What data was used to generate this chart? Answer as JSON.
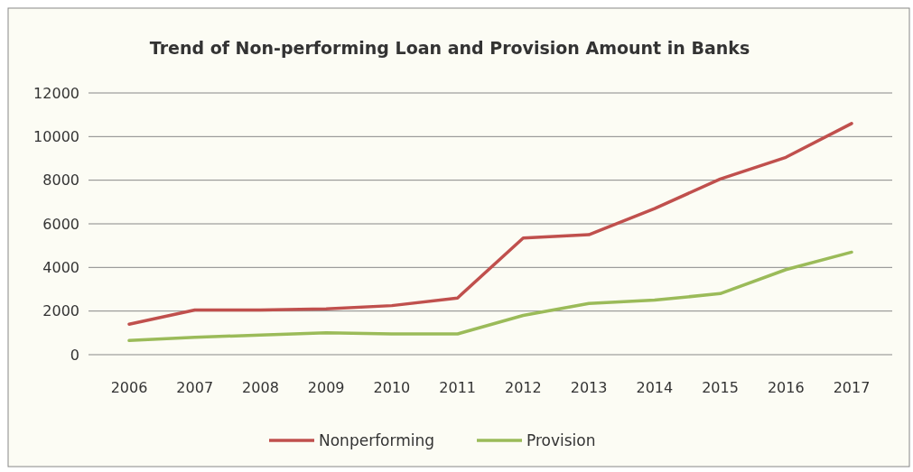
{
  "chart_data": {
    "type": "line",
    "title": "Trend of Non-performing Loan and Provision Amount in Banks",
    "categories": [
      "2006",
      "2007",
      "2008",
      "2009",
      "2010",
      "2011",
      "2012",
      "2013",
      "2014",
      "2015",
      "2016",
      "2017"
    ],
    "series": [
      {
        "name": "Nonperforming",
        "color": "#c0504d",
        "values": [
          1400,
          2050,
          2050,
          2100,
          2250,
          2600,
          5350,
          5500,
          6700,
          8050,
          9050,
          10600
        ]
      },
      {
        "name": "Provision",
        "color": "#9bbb59",
        "values": [
          650,
          800,
          900,
          1000,
          950,
          950,
          1800,
          2350,
          2500,
          2800,
          3900,
          4700
        ]
      }
    ],
    "ylim": [
      0,
      12000
    ],
    "yticks": [
      0,
      2000,
      4000,
      6000,
      8000,
      10000,
      12000
    ],
    "grid": "y",
    "legend": "bottom",
    "marker": "none",
    "line_style": "solid"
  }
}
